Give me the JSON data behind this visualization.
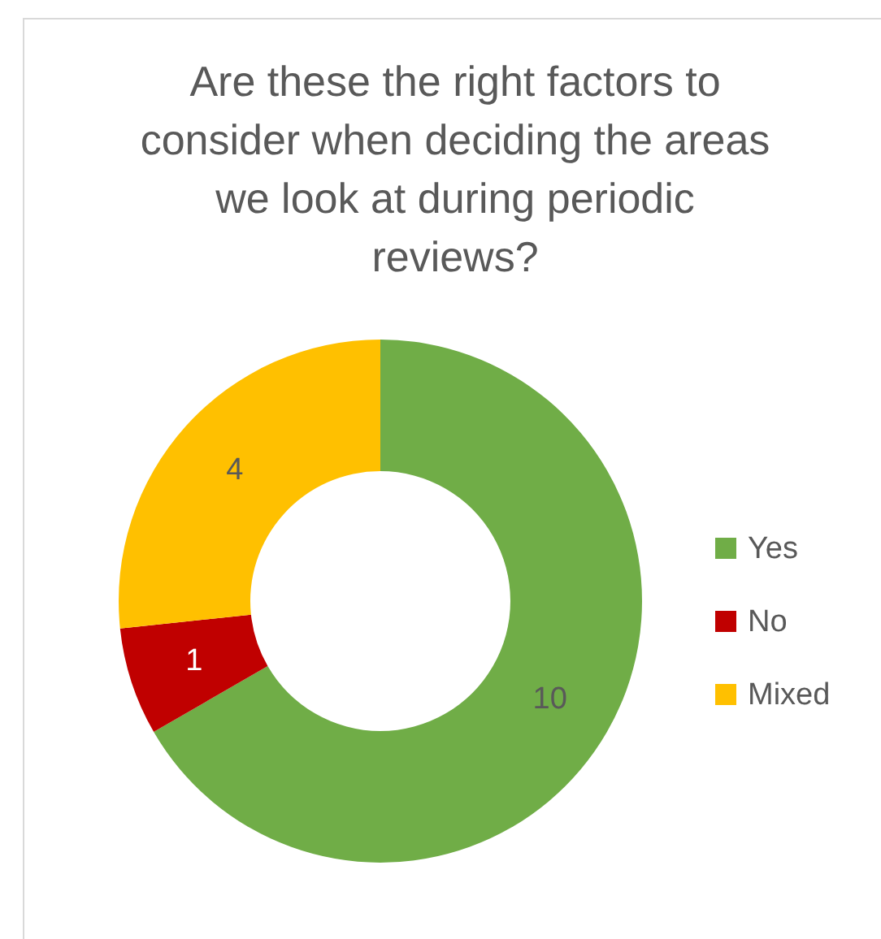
{
  "chart_data": {
    "type": "donut",
    "title": "Are these the right factors to consider when deciding the areas we look at during periodic reviews?",
    "categories": [
      "Yes",
      "No",
      "Mixed"
    ],
    "values": [
      10,
      1,
      4
    ],
    "colors": [
      "#70ad47",
      "#c00000",
      "#ffc000"
    ],
    "data_labels": true,
    "legend": "right"
  }
}
